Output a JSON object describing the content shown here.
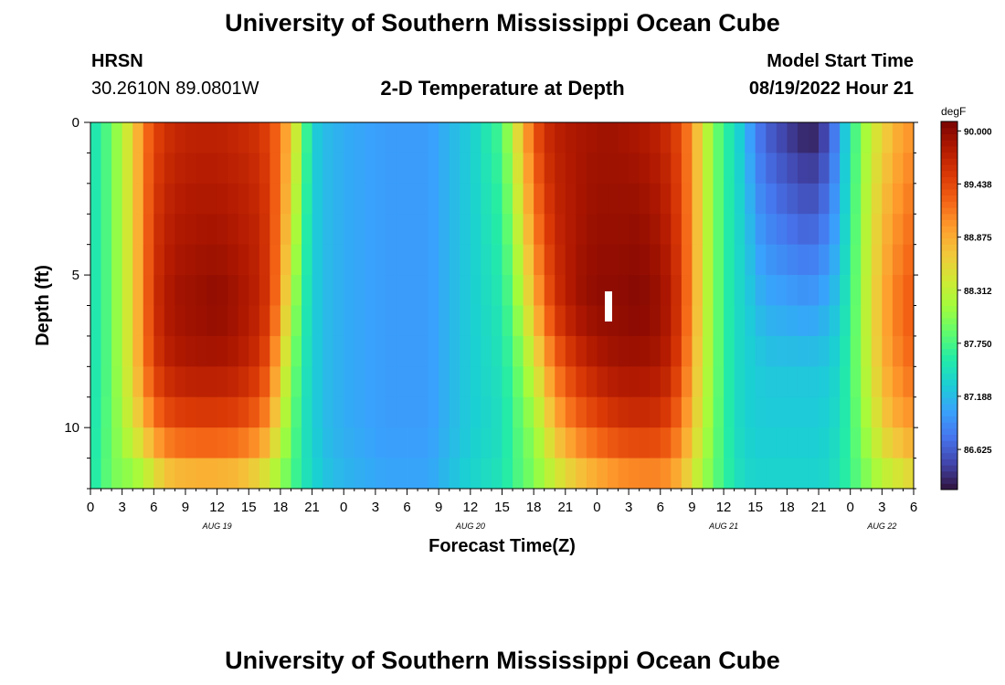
{
  "header": {
    "title": "University of Southern Mississippi Ocean Cube",
    "station": "HRSN",
    "coordinates": "30.2610N  89.0801W",
    "subtitle": "2-D Temperature at Depth",
    "model_start_label": "Model Start Time",
    "model_start_value": "08/19/2022 Hour 21"
  },
  "footer": {
    "title": "University of Southern Mississippi Ocean Cube"
  },
  "chart_data": {
    "type": "heatmap",
    "title": "2-D Temperature at Depth",
    "xlabel": "Forecast Time(Z)",
    "ylabel": "Depth (ft)",
    "x_tick_labels": [
      "0",
      "3",
      "6",
      "9",
      "12",
      "15",
      "18",
      "21",
      "0",
      "3",
      "6",
      "9",
      "12",
      "15",
      "18",
      "21",
      "0",
      "3",
      "6",
      "9",
      "12",
      "15",
      "18",
      "21",
      "0",
      "3",
      "6"
    ],
    "date_labels": [
      "AUG 19",
      "AUG 20",
      "AUG 21",
      "AUG 22"
    ],
    "y_tick_labels": [
      "0",
      "5",
      "10"
    ],
    "y_range": [
      0,
      12
    ],
    "colorbar": {
      "unit": "degF",
      "tick_labels": [
        "90.000",
        "89.438",
        "88.875",
        "88.312",
        "87.750",
        "87.188",
        "86.625"
      ],
      "range": [
        86.2,
        90.1
      ]
    },
    "colors": {
      "c0": "#30123b",
      "c1": "#4145ab",
      "c2": "#4675ed",
      "c3": "#39a2fc",
      "c4": "#1bcfd4",
      "c5": "#24eca6",
      "c6": "#61fc6c",
      "c7": "#a4fc3b",
      "c8": "#d1e834",
      "c9": "#f3c63a",
      "c10": "#fe9b2d",
      "c11": "#f36315",
      "c12": "#d93806",
      "c13": "#b11901",
      "c14": "#7a0402"
    },
    "depth_rows_ft": [
      0.5,
      1.5,
      2.5,
      3.5,
      4.5,
      5.5,
      6.5,
      7.5,
      8.5,
      9.5,
      10.5,
      11.5
    ],
    "profiles": {
      "hours": [
        0,
        1,
        2,
        4,
        5,
        6,
        7,
        8,
        10,
        12,
        14,
        16,
        17,
        18,
        19,
        20,
        21,
        22,
        23,
        24,
        28,
        32,
        36,
        39,
        40,
        41,
        42,
        43,
        44,
        46,
        48,
        50,
        52,
        54,
        55,
        56,
        57,
        58,
        59,
        60,
        61,
        62,
        63,
        64,
        66,
        68,
        69,
        70,
        71,
        72,
        73,
        74,
        75,
        76,
        77,
        78
      ],
      "depth_ft": [
        0.5,
        3,
        6,
        8,
        10,
        11.5
      ],
      "temps_degF": [
        [
          87.45,
          87.45,
          87.45,
          87.45,
          87.45,
          87.5
        ],
        [
          87.65,
          87.65,
          87.65,
          87.65,
          87.7,
          87.7
        ],
        [
          87.9,
          87.9,
          87.9,
          87.9,
          87.9,
          87.95
        ],
        [
          88.6,
          88.6,
          88.6,
          88.6,
          88.45,
          88.1
        ],
        [
          89.1,
          89.1,
          89.1,
          89.1,
          88.75,
          88.25
        ],
        [
          89.45,
          89.55,
          89.6,
          89.5,
          89.1,
          88.5
        ],
        [
          89.6,
          89.7,
          89.8,
          89.7,
          89.3,
          88.7
        ],
        [
          89.7,
          89.8,
          89.9,
          89.8,
          89.4,
          88.8
        ],
        [
          89.75,
          89.85,
          89.95,
          89.85,
          89.45,
          88.85
        ],
        [
          89.75,
          89.85,
          90.0,
          89.85,
          89.45,
          88.85
        ],
        [
          89.7,
          89.8,
          89.9,
          89.8,
          89.4,
          88.8
        ],
        [
          89.6,
          89.7,
          89.75,
          89.6,
          89.2,
          88.6
        ],
        [
          89.45,
          89.5,
          89.5,
          89.3,
          88.9,
          88.4
        ],
        [
          89.15,
          89.1,
          89.0,
          88.7,
          88.4,
          88.1
        ],
        [
          88.75,
          88.6,
          88.3,
          88.1,
          87.95,
          87.85
        ],
        [
          88.0,
          87.85,
          87.7,
          87.6,
          87.55,
          87.55
        ],
        [
          87.35,
          87.35,
          87.35,
          87.35,
          87.35,
          87.4
        ],
        [
          87.2,
          87.2,
          87.2,
          87.2,
          87.2,
          87.25
        ],
        [
          87.15,
          87.15,
          87.15,
          87.15,
          87.15,
          87.2
        ],
        [
          87.1,
          87.1,
          87.1,
          87.1,
          87.1,
          87.15
        ],
        [
          87.0,
          87.0,
          87.0,
          87.0,
          87.0,
          87.05
        ],
        [
          87.0,
          87.0,
          87.0,
          87.0,
          87.0,
          87.05
        ],
        [
          87.3,
          87.3,
          87.3,
          87.3,
          87.3,
          87.35
        ],
        [
          87.75,
          87.65,
          87.55,
          87.5,
          87.45,
          87.5
        ],
        [
          88.3,
          88.1,
          87.9,
          87.75,
          87.7,
          87.7
        ],
        [
          88.8,
          88.6,
          88.3,
          88.05,
          87.9,
          87.85
        ],
        [
          89.3,
          89.1,
          88.8,
          88.4,
          88.1,
          88.0
        ],
        [
          89.6,
          89.45,
          89.2,
          88.8,
          88.4,
          88.2
        ],
        [
          89.75,
          89.7,
          89.6,
          89.2,
          88.8,
          88.4
        ],
        [
          89.85,
          89.85,
          89.9,
          89.6,
          89.2,
          88.7
        ],
        [
          89.9,
          89.95,
          90.0,
          89.8,
          89.4,
          88.9
        ],
        [
          89.9,
          89.95,
          90.0,
          89.9,
          89.55,
          89.05
        ],
        [
          89.85,
          89.95,
          90.05,
          89.9,
          89.6,
          89.1
        ],
        [
          89.75,
          89.85,
          89.95,
          89.85,
          89.55,
          89.1
        ],
        [
          89.6,
          89.7,
          89.8,
          89.7,
          89.4,
          89.0
        ],
        [
          89.4,
          89.45,
          89.5,
          89.4,
          89.15,
          88.8
        ],
        [
          89.0,
          89.0,
          89.0,
          88.9,
          88.75,
          88.5
        ],
        [
          88.5,
          88.5,
          88.5,
          88.45,
          88.35,
          88.2
        ],
        [
          88.0,
          88.0,
          88.0,
          88.0,
          87.95,
          87.9
        ],
        [
          87.7,
          87.7,
          87.7,
          87.7,
          87.7,
          87.7
        ],
        [
          87.45,
          87.45,
          87.45,
          87.45,
          87.45,
          87.5
        ],
        [
          87.2,
          87.3,
          87.35,
          87.35,
          87.35,
          87.4
        ],
        [
          86.85,
          87.0,
          87.2,
          87.3,
          87.3,
          87.35
        ],
        [
          86.65,
          86.85,
          87.1,
          87.25,
          87.3,
          87.35
        ],
        [
          86.45,
          86.7,
          87.05,
          87.25,
          87.3,
          87.35
        ],
        [
          86.3,
          86.6,
          87.0,
          87.25,
          87.3,
          87.35
        ],
        [
          86.35,
          86.65,
          87.05,
          87.25,
          87.3,
          87.35
        ],
        [
          86.6,
          86.85,
          87.15,
          87.3,
          87.35,
          87.4
        ],
        [
          87.0,
          87.1,
          87.3,
          87.4,
          87.45,
          87.5
        ],
        [
          87.55,
          87.6,
          87.65,
          87.7,
          87.7,
          87.7
        ],
        [
          88.0,
          88.05,
          88.1,
          88.1,
          88.0,
          87.9
        ],
        [
          88.35,
          88.45,
          88.5,
          88.45,
          88.3,
          88.1
        ],
        [
          88.6,
          88.75,
          88.85,
          88.8,
          88.6,
          88.3
        ],
        [
          88.8,
          88.95,
          89.1,
          89.0,
          88.8,
          88.4
        ],
        [
          88.95,
          89.1,
          89.25,
          89.15,
          88.9,
          88.5
        ],
        [
          89.05,
          89.2,
          89.35,
          89.25,
          89.0,
          88.6
        ]
      ]
    }
  }
}
